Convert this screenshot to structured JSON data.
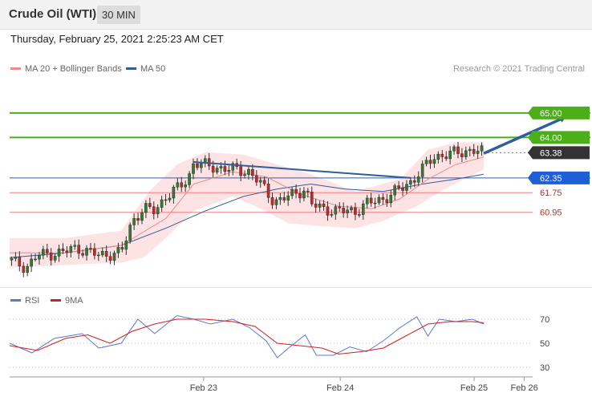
{
  "header": {
    "title": "Crude Oil (WTI)",
    "timeframe": "30 MIN"
  },
  "timestamp": "Thursday, February 25, 2021 2:25:23 AM CET",
  "credit": "Research © 2021 Trading Central",
  "legend": {
    "ma20": {
      "label": "MA 20 + Bollinger Bands",
      "color": "#f08a8a"
    },
    "ma50": {
      "label": "MA 50",
      "color": "#2f5d9e"
    }
  },
  "rsi_legend": {
    "rsi": {
      "label": "RSI",
      "color": "#5b78d6"
    },
    "ma9": {
      "label": "9MA",
      "color": "#d11f1f"
    }
  },
  "colors": {
    "up": "#2e7d32",
    "down": "#c62828",
    "resistance": "#4caf1a",
    "support": "#f08080",
    "pivot": "#1f5fd6",
    "current": "#333333",
    "arrow": "#2f5d9e"
  },
  "chart_data": [
    {
      "type": "line",
      "title": "Crude Oil (WTI)",
      "ylim": [
        57.9,
        66.4
      ],
      "x_tick_labels": [
        "Feb 23",
        "Feb 24",
        "Feb 25",
        "Feb 26"
      ],
      "x_ticks": [
        71,
        120,
        168,
        186
      ],
      "levels": [
        {
          "name": "resistance-2",
          "value": 65.0,
          "label": "65.00",
          "kind": "resistance"
        },
        {
          "name": "resistance-1",
          "value": 64.0,
          "label": "64.00",
          "kind": "resistance"
        },
        {
          "name": "current-price",
          "value": 63.38,
          "label": "63.38",
          "kind": "current"
        },
        {
          "name": "pivot",
          "value": 62.35,
          "label": "62.35",
          "kind": "pivot"
        },
        {
          "name": "support-1",
          "value": 61.75,
          "label": "61.75",
          "kind": "support"
        },
        {
          "name": "support-2",
          "value": 60.95,
          "label": "60.95",
          "kind": "support"
        }
      ],
      "trendline": {
        "from": [
          66,
          63.0
        ],
        "to": [
          144,
          62.35
        ]
      },
      "projection_arrow": {
        "from": [
          170,
          63.35
        ],
        "to": [
          187,
          65.0
        ]
      },
      "close_path": [
        [
          0,
          59.0
        ],
        [
          6,
          58.7
        ],
        [
          10,
          59.2
        ],
        [
          18,
          59.3
        ],
        [
          24,
          59.5
        ],
        [
          32,
          59.2
        ],
        [
          40,
          59.3
        ],
        [
          44,
          60.6
        ],
        [
          48,
          61.1
        ],
        [
          52,
          61.0
        ],
        [
          56,
          61.6
        ],
        [
          60,
          61.9
        ],
        [
          64,
          62.3
        ],
        [
          66,
          63.0
        ],
        [
          72,
          62.8
        ],
        [
          80,
          62.7
        ],
        [
          86,
          62.6
        ],
        [
          90,
          62.1
        ],
        [
          94,
          61.5
        ],
        [
          96,
          61.4
        ],
        [
          100,
          61.6
        ],
        [
          106,
          61.9
        ],
        [
          108,
          61.3
        ],
        [
          112,
          61.1
        ],
        [
          118,
          61.0
        ],
        [
          124,
          61.0
        ],
        [
          128,
          61.3
        ],
        [
          134,
          61.5
        ],
        [
          140,
          61.9
        ],
        [
          144,
          62.2
        ],
        [
          148,
          62.7
        ],
        [
          152,
          63.2
        ],
        [
          156,
          63.3
        ],
        [
          162,
          63.4
        ],
        [
          166,
          63.5
        ],
        [
          170,
          63.38
        ]
      ],
      "series": [
        {
          "name": "MA 20",
          "values": [
            [
              0,
              59.3
            ],
            [
              20,
              59.3
            ],
            [
              40,
              59.6
            ],
            [
              56,
              60.7
            ],
            [
              66,
              62.1
            ],
            [
              80,
              62.6
            ],
            [
              92,
              62.4
            ],
            [
              104,
              61.7
            ],
            [
              118,
              61.2
            ],
            [
              130,
              61.1
            ],
            [
              140,
              61.5
            ],
            [
              150,
              62.3
            ],
            [
              160,
              62.9
            ],
            [
              170,
              63.2
            ]
          ]
        },
        {
          "name": "MA 50",
          "values": [
            [
              0,
              59.1
            ],
            [
              20,
              59.3
            ],
            [
              40,
              59.6
            ],
            [
              56,
              60.3
            ],
            [
              70,
              61.0
            ],
            [
              84,
              61.6
            ],
            [
              96,
              61.9
            ],
            [
              108,
              62.1
            ],
            [
              120,
              61.9
            ],
            [
              134,
              61.8
            ],
            [
              148,
              62.1
            ],
            [
              160,
              62.3
            ],
            [
              170,
              62.5
            ]
          ]
        },
        {
          "name": "Bollinger Upper",
          "values": [
            [
              0,
              59.9
            ],
            [
              20,
              59.9
            ],
            [
              40,
              60.2
            ],
            [
              50,
              61.8
            ],
            [
              60,
              62.9
            ],
            [
              70,
              63.4
            ],
            [
              84,
              63.3
            ],
            [
              96,
              62.9
            ],
            [
              108,
              62.5
            ],
            [
              124,
              61.8
            ],
            [
              140,
              62.3
            ],
            [
              150,
              63.5
            ],
            [
              160,
              63.8
            ],
            [
              170,
              63.8
            ]
          ]
        },
        {
          "name": "Bollinger Lower",
          "values": [
            [
              0,
              58.7
            ],
            [
              20,
              58.8
            ],
            [
              40,
              58.9
            ],
            [
              48,
              59.1
            ],
            [
              56,
              59.9
            ],
            [
              66,
              61.0
            ],
            [
              80,
              61.6
            ],
            [
              90,
              61.1
            ],
            [
              100,
              60.5
            ],
            [
              110,
              60.4
            ],
            [
              124,
              60.3
            ],
            [
              134,
              60.6
            ],
            [
              146,
              61.2
            ],
            [
              156,
              61.9
            ],
            [
              170,
              62.7
            ]
          ]
        }
      ]
    },
    {
      "type": "line",
      "title": "RSI",
      "ylim": [
        22,
        82
      ],
      "y_ticks": [
        30,
        50,
        70
      ],
      "series": [
        {
          "name": "RSI",
          "values": [
            [
              0,
              50
            ],
            [
              8,
              42
            ],
            [
              16,
              54
            ],
            [
              26,
              58
            ],
            [
              32,
              46
            ],
            [
              40,
              50
            ],
            [
              46,
              70
            ],
            [
              52,
              58
            ],
            [
              60,
              73
            ],
            [
              66,
              70
            ],
            [
              72,
              66
            ],
            [
              80,
              70
            ],
            [
              86,
              63
            ],
            [
              92,
              52
            ],
            [
              96,
              38
            ],
            [
              100,
              46
            ],
            [
              106,
              57
            ],
            [
              110,
              40
            ],
            [
              116,
              40
            ],
            [
              122,
              47
            ],
            [
              128,
              43
            ],
            [
              134,
              52
            ],
            [
              140,
              63
            ],
            [
              146,
              72
            ],
            [
              150,
              56
            ],
            [
              154,
              70
            ],
            [
              160,
              68
            ],
            [
              166,
              70
            ],
            [
              170,
              66
            ]
          ]
        },
        {
          "name": "9MA",
          "values": [
            [
              0,
              48
            ],
            [
              10,
              44
            ],
            [
              20,
              54
            ],
            [
              28,
              57
            ],
            [
              36,
              50
            ],
            [
              44,
              60
            ],
            [
              52,
              66
            ],
            [
              60,
              70
            ],
            [
              70,
              70
            ],
            [
              80,
              68
            ],
            [
              88,
              64
            ],
            [
              96,
              50
            ],
            [
              104,
              48
            ],
            [
              112,
              46
            ],
            [
              118,
              41
            ],
            [
              126,
              43
            ],
            [
              134,
              46
            ],
            [
              142,
              56
            ],
            [
              150,
              66
            ],
            [
              158,
              68
            ],
            [
              166,
              68
            ],
            [
              170,
              67
            ]
          ]
        }
      ]
    }
  ]
}
